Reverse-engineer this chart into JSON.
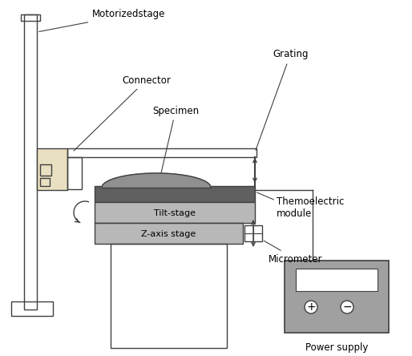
{
  "labels": {
    "motorized_stage": "Motorizedstage",
    "connector": "Connector",
    "grating": "Grating",
    "specimen": "Specimen",
    "thermo_module": "Themoelectric\nmodule",
    "tilt_stage": "Tilt-stage",
    "z_axis_stage": "Z-axis stage",
    "micrometer": "Micrometer",
    "power_supply": "Power supply"
  },
  "colors": {
    "outline": "#404040",
    "white": "#ffffff",
    "dark_gray": "#606060",
    "mid_gray": "#909090",
    "light_gray": "#b8b8b8",
    "lighter_gray": "#cccccc",
    "cream": "#e8e0c0",
    "ps_gray": "#a0a0a0"
  }
}
